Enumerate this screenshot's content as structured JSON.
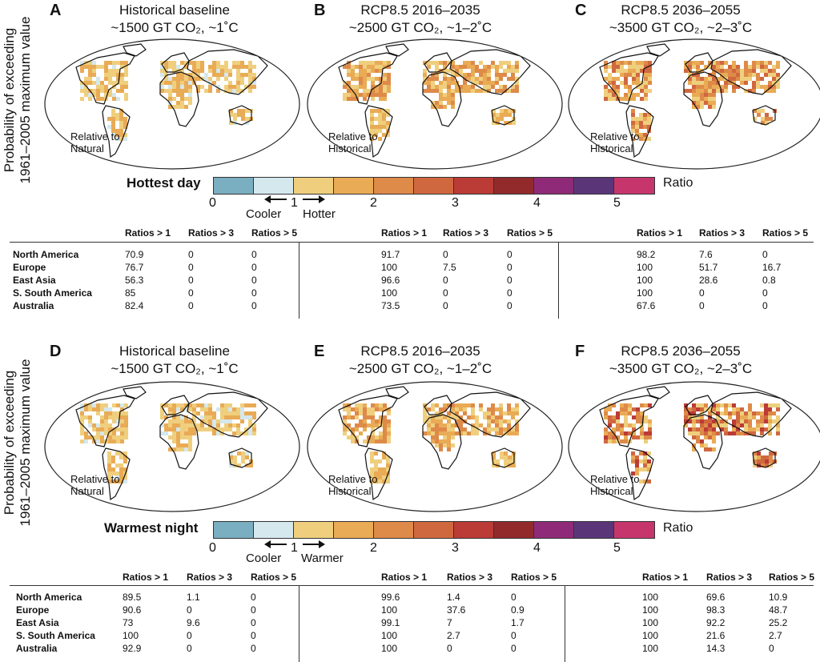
{
  "y_axis_label": [
    "Probability of exceeding",
    "1961–2005 maximum value"
  ],
  "panels": [
    {
      "letter": "A",
      "title": "Historical baseline",
      "subtitle": "~1500 GT CO₂, ~1˚C",
      "note": [
        "Relative to",
        "Natural"
      ]
    },
    {
      "letter": "B",
      "title": "RCP8.5 2016–2035",
      "subtitle": "~2500 GT CO₂, ~1–2˚C",
      "note": [
        "Relative to",
        "Historical"
      ]
    },
    {
      "letter": "C",
      "title": "RCP8.5 2036–2055",
      "subtitle": "~3500 GT CO₂, ~2–3˚C",
      "note": [
        "Relative to",
        "Historical"
      ]
    },
    {
      "letter": "D",
      "title": "Historical baseline",
      "subtitle": "~1500 GT CO₂, ~1˚C",
      "note": [
        "Relative to",
        "Natural"
      ]
    },
    {
      "letter": "E",
      "title": "RCP8.5 2016–2035",
      "subtitle": "~2500 GT CO₂, ~1–2˚C",
      "note": [
        "Relative to",
        "Historical"
      ]
    },
    {
      "letter": "F",
      "title": "RCP8.5 2036–2055",
      "subtitle": "~3500 GT CO₂, ~2–3˚C",
      "note": [
        "Relative to",
        "Historical"
      ]
    }
  ],
  "legends": [
    {
      "title": "Hottest day",
      "left_word": "Cooler",
      "right_word": "Hotter",
      "ratio_label": "Ratio",
      "ticks": [
        "0",
        "1",
        "2",
        "3",
        "4",
        "5"
      ]
    },
    {
      "title": "Warmest night",
      "left_word": "Cooler",
      "right_word": "Warmer",
      "ratio_label": "Ratio",
      "ticks": [
        "0",
        "1",
        "2",
        "3",
        "4",
        "5"
      ]
    }
  ],
  "colors": {
    "scale": [
      "#7aaec1",
      "#d4e8ee",
      "#efcf7e",
      "#e9ab55",
      "#de8a49",
      "#d0683f",
      "#bb3b36",
      "#922a2c",
      "#8f2a78",
      "#5a3679",
      "#c6366d"
    ]
  },
  "tables": {
    "column_headers": [
      "Ratios > 1",
      "Ratios > 3",
      "Ratios > 5"
    ],
    "regions": [
      "North America",
      "Europe",
      "East Asia",
      "S. South America",
      "Australia"
    ],
    "hottest_day": [
      [
        [
          "70.9",
          "0",
          "0"
        ],
        [
          "76.7",
          "0",
          "0"
        ],
        [
          "56.3",
          "0",
          "0"
        ],
        [
          "85",
          "0",
          "0"
        ],
        [
          "82.4",
          "0",
          "0"
        ]
      ],
      [
        [
          "91.7",
          "0",
          "0"
        ],
        [
          "100",
          "7.5",
          "0"
        ],
        [
          "96.6",
          "0",
          "0"
        ],
        [
          "100",
          "0",
          "0"
        ],
        [
          "73.5",
          "0",
          "0"
        ]
      ],
      [
        [
          "98.2",
          "7.6",
          "0"
        ],
        [
          "100",
          "51.7",
          "16.7"
        ],
        [
          "100",
          "28.6",
          "0.8"
        ],
        [
          "100",
          "0",
          "0"
        ],
        [
          "67.6",
          "0",
          "0"
        ]
      ]
    ],
    "warmest_night": [
      [
        [
          "89.5",
          "1.1",
          "0"
        ],
        [
          "90.6",
          "0",
          "0"
        ],
        [
          "73",
          "9.6",
          "0"
        ],
        [
          "100",
          "0",
          "0"
        ],
        [
          "92.9",
          "0",
          "0"
        ]
      ],
      [
        [
          "99.6",
          "1.4",
          "0"
        ],
        [
          "100",
          "37.6",
          "0.9"
        ],
        [
          "99.1",
          "7",
          "1.7"
        ],
        [
          "100",
          "2.7",
          "0"
        ],
        [
          "100",
          "0",
          "0"
        ]
      ],
      [
        [
          "100",
          "69.6",
          "10.9"
        ],
        [
          "100",
          "98.3",
          "48.7"
        ],
        [
          "100",
          "92.2",
          "25.2"
        ],
        [
          "100",
          "21.6",
          "2.7"
        ],
        [
          "100",
          "14.3",
          "0"
        ]
      ]
    ]
  }
}
